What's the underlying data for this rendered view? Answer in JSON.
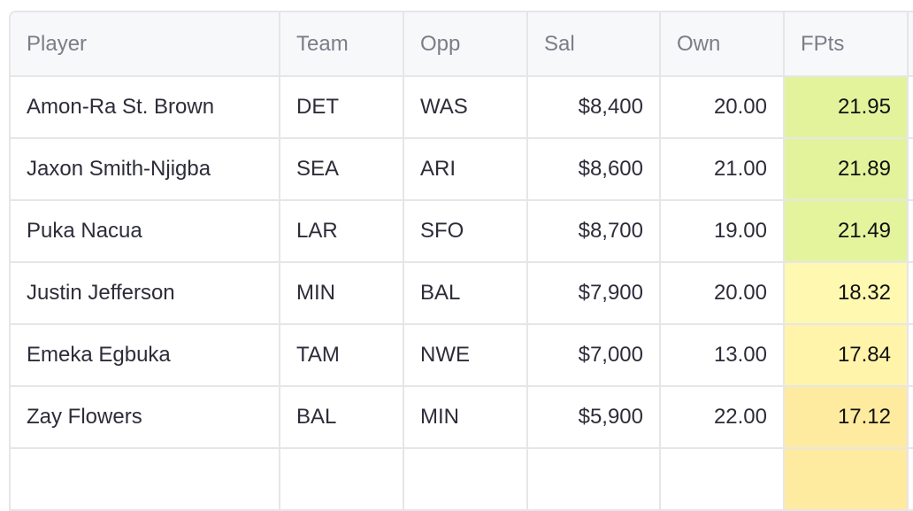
{
  "columns": [
    "Player",
    "Team",
    "Opp",
    "Sal",
    "Own",
    "FPts"
  ],
  "rows": [
    {
      "player": "Amon-Ra St. Brown",
      "team": "DET",
      "opp": "WAS",
      "sal": "$8,400",
      "own": "20.00",
      "fpts": "21.95",
      "fpts_color": "#e2f39b"
    },
    {
      "player": "Jaxon Smith-Njigba",
      "team": "SEA",
      "opp": "ARI",
      "sal": "$8,600",
      "own": "21.00",
      "fpts": "21.89",
      "fpts_color": "#e2f39b"
    },
    {
      "player": "Puka Nacua",
      "team": "LAR",
      "opp": "SFO",
      "sal": "$8,700",
      "own": "19.00",
      "fpts": "21.49",
      "fpts_color": "#e4f49d"
    },
    {
      "player": "Justin Jefferson",
      "team": "MIN",
      "opp": "BAL",
      "sal": "$7,900",
      "own": "20.00",
      "fpts": "18.32",
      "fpts_color": "#fff8b0"
    },
    {
      "player": "Emeka Egbuka",
      "team": "TAM",
      "opp": "NWE",
      "sal": "$7,000",
      "own": "13.00",
      "fpts": "17.84",
      "fpts_color": "#fff4aa"
    },
    {
      "player": "Zay Flowers",
      "team": "BAL",
      "opp": "MIN",
      "sal": "$5,900",
      "own": "22.00",
      "fpts": "17.12",
      "fpts_color": "#feeb9f"
    }
  ],
  "partial_row_fpts_color": "#feeb9f"
}
